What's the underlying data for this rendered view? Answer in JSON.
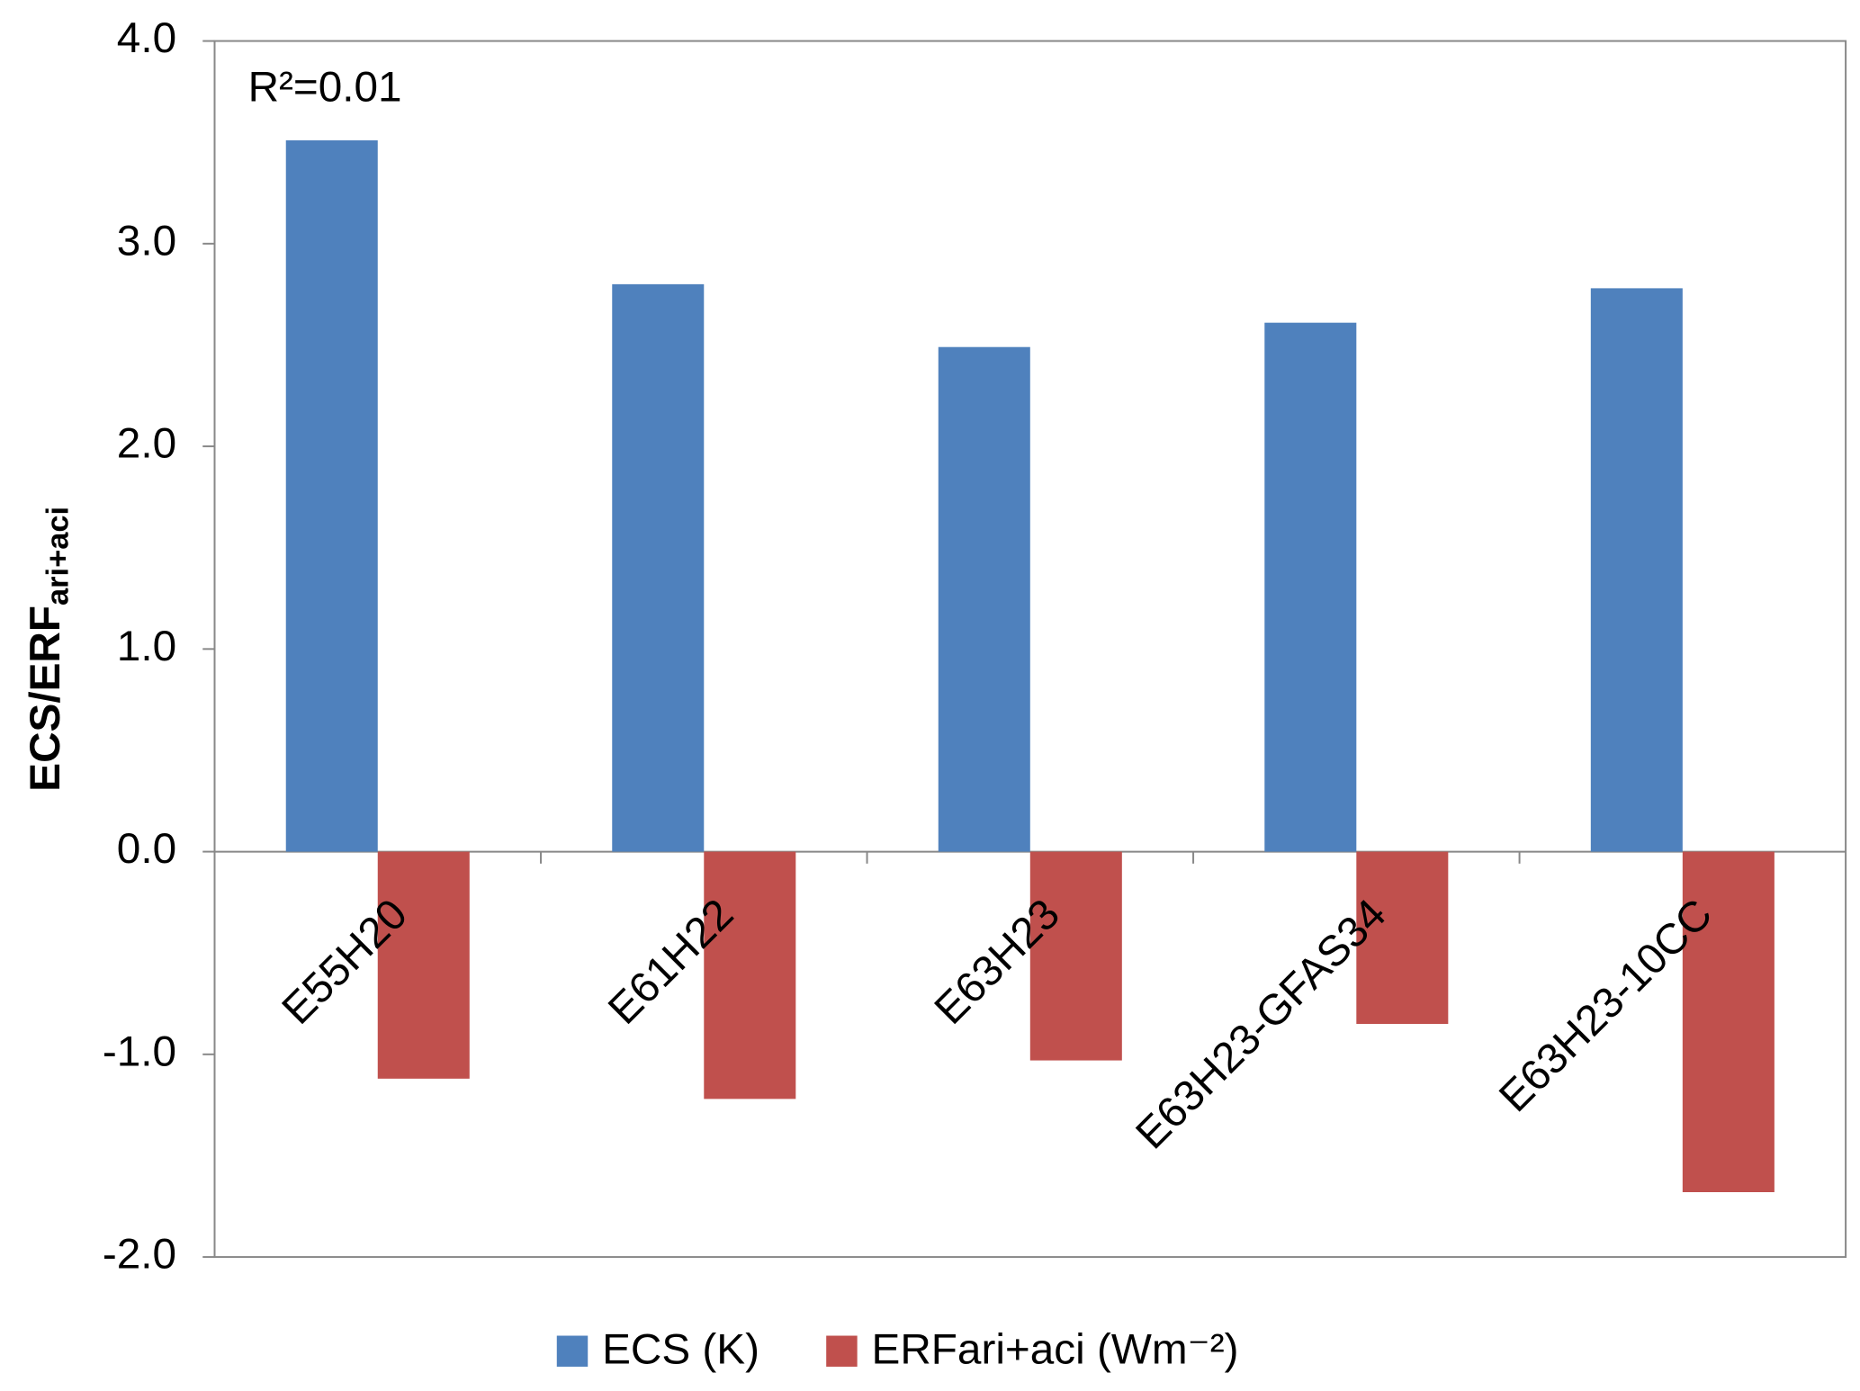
{
  "chart_data": {
    "type": "bar",
    "y_label": [
      "ECS/ERF",
      "ari+aci"
    ],
    "annotation": "R²=0.01",
    "categories": [
      "E55H20",
      "E61H22",
      "E63H23",
      "E63H23-GFAS34",
      "E63H23-10CC"
    ],
    "series": [
      {
        "name": "ECS (K)",
        "color": "#4f81bd",
        "values": [
          3.51,
          2.8,
          2.49,
          2.61,
          2.78
        ]
      },
      {
        "name": "ERFari+aci (Wm⁻²)",
        "color": "#c0504d",
        "values": [
          -1.12,
          -1.22,
          -1.03,
          -0.85,
          -1.68
        ]
      }
    ],
    "ylim": [
      -2,
      4
    ],
    "yticks": [
      {
        "value": -2,
        "label": "-2.0"
      },
      {
        "value": -1,
        "label": "-1.0"
      },
      {
        "value": 0,
        "label": "0.0"
      },
      {
        "value": 1,
        "label": "1.0"
      },
      {
        "value": 2,
        "label": "2.0"
      },
      {
        "value": 3,
        "label": "3.0"
      },
      {
        "value": 4,
        "label": "4.0"
      }
    ],
    "legend": "bottom"
  }
}
